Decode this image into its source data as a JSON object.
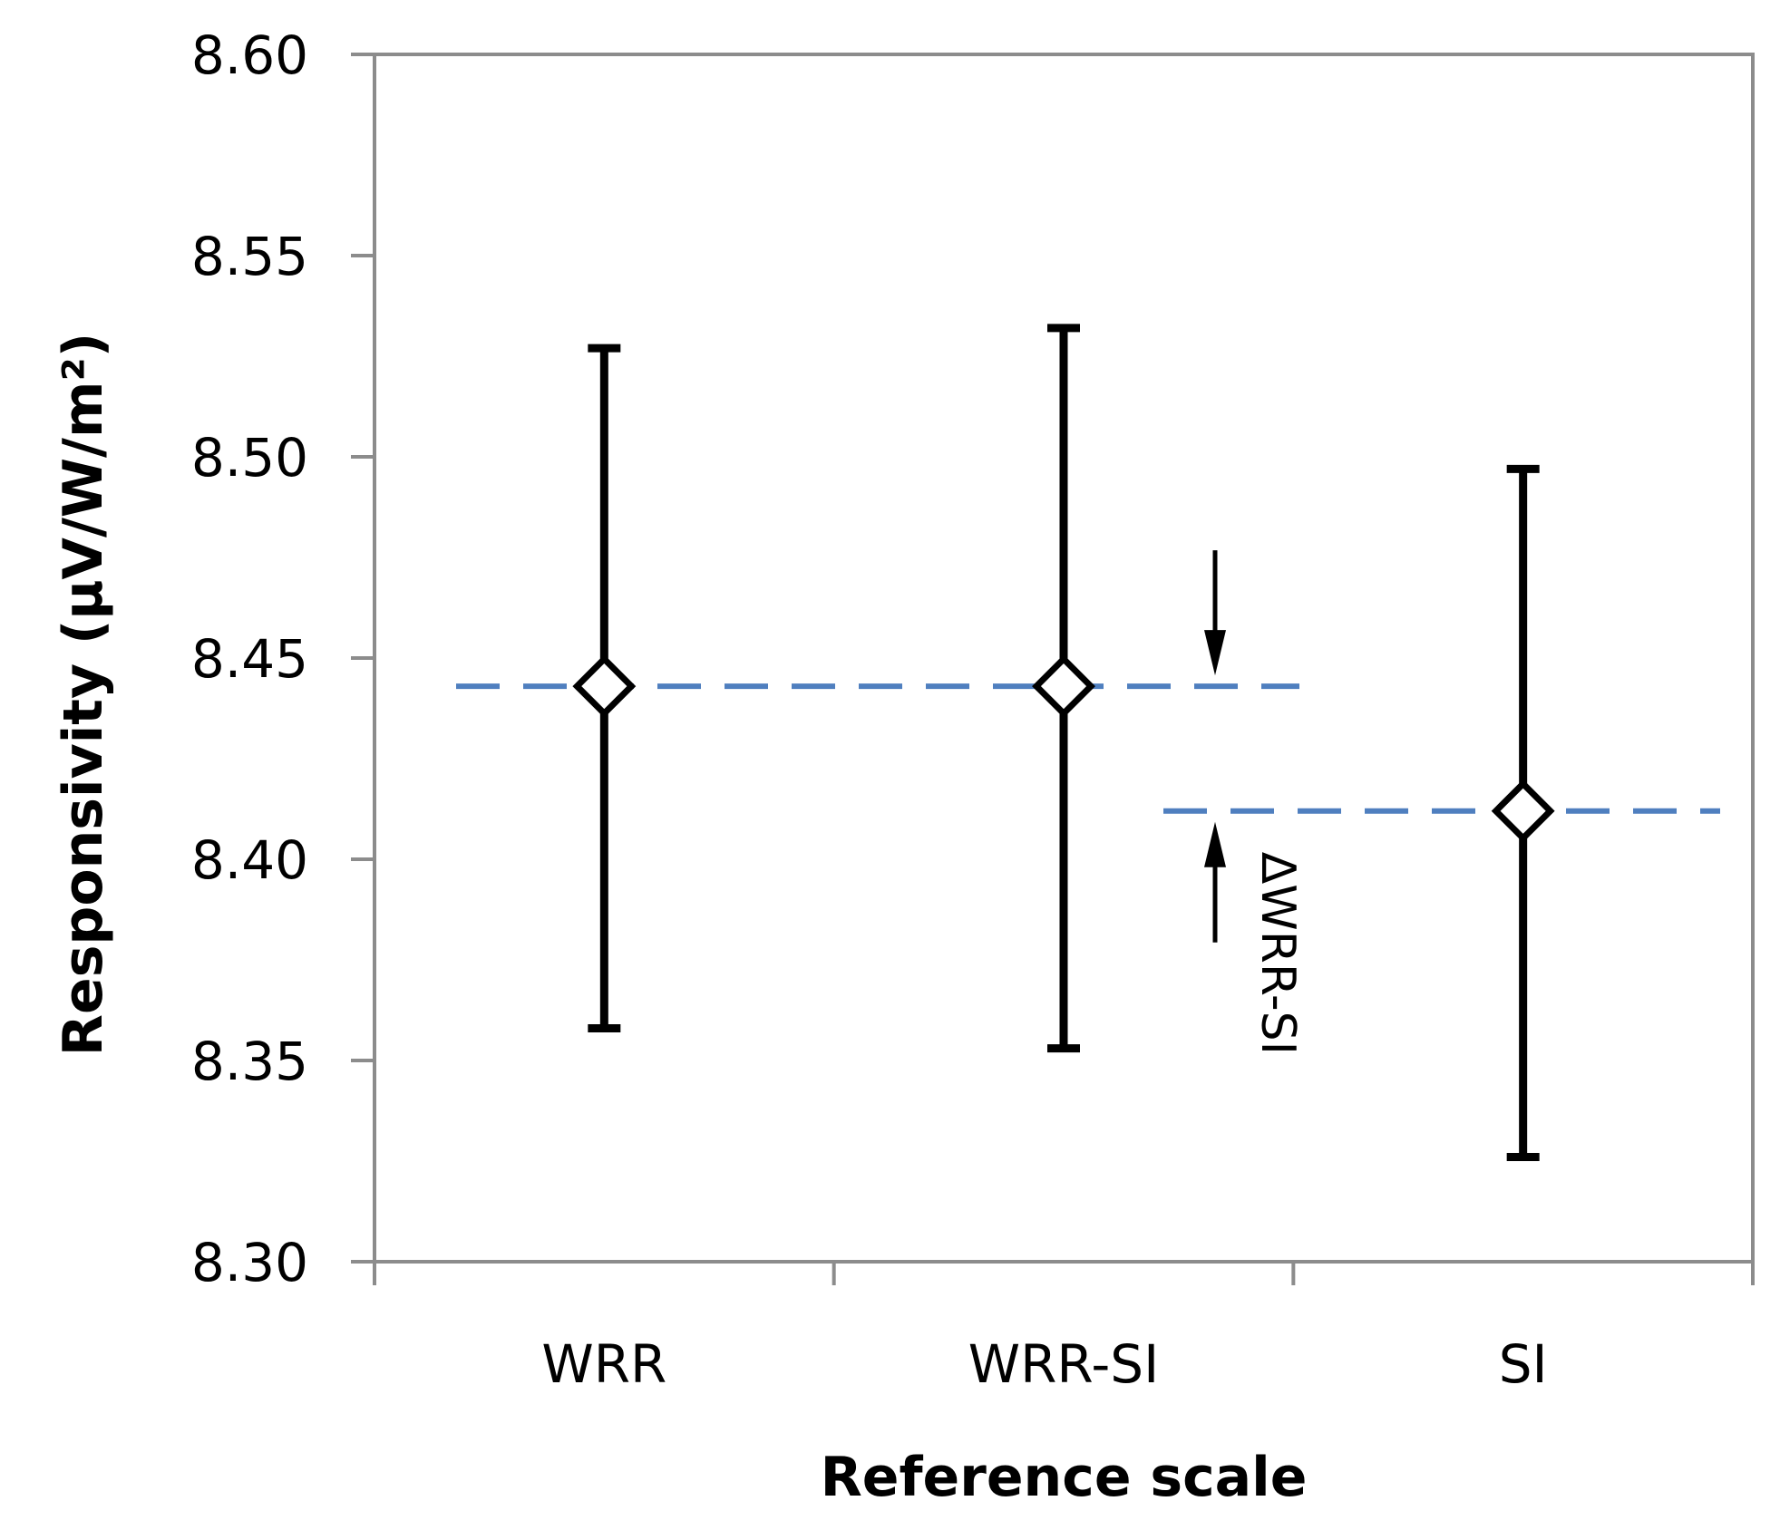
{
  "chart_data": {
    "type": "scatter",
    "title": "",
    "xlabel": "Reference scale",
    "ylabel": "Responsivity (µV/W/m²)",
    "categories": [
      "WRR",
      "WRR-SI",
      "SI"
    ],
    "ylim": [
      8.3,
      8.6
    ],
    "yticks": [
      "8.30",
      "8.35",
      "8.40",
      "8.45",
      "8.50",
      "8.55",
      "8.60"
    ],
    "grid": false,
    "legend": "none",
    "series": [
      {
        "values": [
          8.443,
          8.443,
          8.412
        ],
        "error_low": [
          8.358,
          8.353,
          8.326
        ],
        "error_high": [
          8.527,
          8.532,
          8.497
        ]
      }
    ],
    "reference_lines": [
      {
        "value": 8.443,
        "from_category": "WRR",
        "to_category": "WRR-SI"
      },
      {
        "value": 8.412,
        "from_category": "WRR-SI",
        "to_category": "SI"
      }
    ],
    "annotation": {
      "text": "ΔWRR-SI"
    },
    "colors": {
      "axis": "#8c8c8c",
      "errorbar": "#000000",
      "marker_fill": "#ffffff",
      "marker_edge": "#000000",
      "reference_line": "#4f7fbf"
    }
  }
}
